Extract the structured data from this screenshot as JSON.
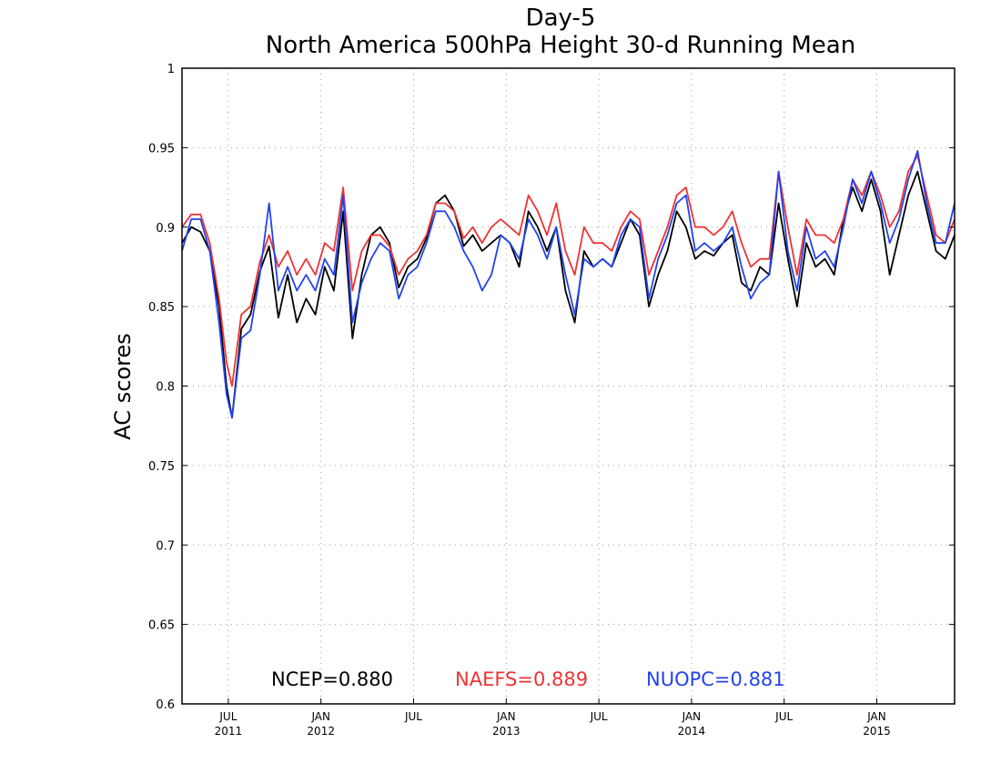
{
  "chart_data": {
    "type": "line",
    "title": "Day-5",
    "subtitle": "North America 500hPa Height 30-d Running Mean",
    "ylabel": "AC scores",
    "xlabel": "",
    "ylim": [
      0.6,
      1.0
    ],
    "xlim": [
      2011.28,
      2015.45
    ],
    "yticks": [
      0.6,
      0.65,
      0.7,
      0.75,
      0.8,
      0.85,
      0.9,
      0.95,
      1
    ],
    "ytick_labels": [
      "0.6",
      "0.65",
      "0.7",
      "0.75",
      "0.8",
      "0.85",
      "0.9",
      "0.95",
      "1"
    ],
    "xticks": [
      {
        "x": 2011.53,
        "month": "JUL",
        "year": "2011"
      },
      {
        "x": 2012.03,
        "month": "JAN",
        "year": "2012"
      },
      {
        "x": 2012.53,
        "month": "JUL",
        "year": ""
      },
      {
        "x": 2013.03,
        "month": "JAN",
        "year": "2013"
      },
      {
        "x": 2013.53,
        "month": "JUL",
        "year": ""
      },
      {
        "x": 2014.03,
        "month": "JAN",
        "year": "2014"
      },
      {
        "x": 2014.53,
        "month": "JUL",
        "year": ""
      },
      {
        "x": 2015.03,
        "month": "JAN",
        "year": "2015"
      }
    ],
    "grid": true,
    "legend_placement": "bottom-center",
    "series": [
      {
        "name": "NCEP",
        "legend_label": "NCEP=0.880",
        "color": "#000000",
        "x": [
          2011.28,
          2011.33,
          2011.38,
          2011.43,
          2011.48,
          2011.52,
          2011.55,
          2011.6,
          2011.65,
          2011.7,
          2011.75,
          2011.8,
          2011.85,
          2011.9,
          2011.95,
          2012.0,
          2012.05,
          2012.1,
          2012.15,
          2012.2,
          2012.25,
          2012.3,
          2012.35,
          2012.4,
          2012.45,
          2012.5,
          2012.55,
          2012.6,
          2012.65,
          2012.7,
          2012.75,
          2012.8,
          2012.85,
          2012.9,
          2012.95,
          2013.0,
          2013.05,
          2013.1,
          2013.15,
          2013.2,
          2013.25,
          2013.3,
          2013.35,
          2013.4,
          2013.45,
          2013.5,
          2013.55,
          2013.6,
          2013.65,
          2013.7,
          2013.75,
          2013.8,
          2013.85,
          2013.9,
          2013.95,
          2014.0,
          2014.05,
          2014.1,
          2014.15,
          2014.2,
          2014.25,
          2014.3,
          2014.35,
          2014.4,
          2014.45,
          2014.5,
          2014.55,
          2014.6,
          2014.65,
          2014.7,
          2014.75,
          2014.8,
          2014.85,
          2014.9,
          2014.95,
          2015.0,
          2015.05,
          2015.1,
          2015.15,
          2015.2,
          2015.25,
          2015.3,
          2015.35,
          2015.4,
          2015.45
        ],
        "y": [
          0.89,
          0.9,
          0.897,
          0.885,
          0.85,
          0.8,
          0.78,
          0.836,
          0.845,
          0.872,
          0.888,
          0.843,
          0.87,
          0.84,
          0.855,
          0.845,
          0.875,
          0.86,
          0.91,
          0.83,
          0.87,
          0.895,
          0.9,
          0.89,
          0.862,
          0.875,
          0.88,
          0.893,
          0.915,
          0.92,
          0.91,
          0.888,
          0.895,
          0.885,
          0.89,
          0.895,
          0.89,
          0.875,
          0.91,
          0.9,
          0.885,
          0.9,
          0.86,
          0.84,
          0.885,
          0.875,
          0.88,
          0.875,
          0.89,
          0.905,
          0.895,
          0.85,
          0.87,
          0.885,
          0.91,
          0.9,
          0.88,
          0.885,
          0.882,
          0.89,
          0.895,
          0.865,
          0.86,
          0.875,
          0.87,
          0.915,
          0.88,
          0.85,
          0.89,
          0.875,
          0.88,
          0.87,
          0.905,
          0.925,
          0.91,
          0.93,
          0.91,
          0.87,
          0.895,
          0.92,
          0.935,
          0.91,
          0.885,
          0.88,
          0.895
        ]
      },
      {
        "name": "NAEFS",
        "legend_label": "NAEFS=0.889",
        "color": "#ee3333",
        "x": [
          2011.28,
          2011.33,
          2011.38,
          2011.43,
          2011.48,
          2011.52,
          2011.55,
          2011.6,
          2011.65,
          2011.7,
          2011.75,
          2011.8,
          2011.85,
          2011.9,
          2011.95,
          2012.0,
          2012.05,
          2012.1,
          2012.15,
          2012.2,
          2012.25,
          2012.3,
          2012.35,
          2012.4,
          2012.45,
          2012.5,
          2012.55,
          2012.6,
          2012.65,
          2012.7,
          2012.75,
          2012.8,
          2012.85,
          2012.9,
          2012.95,
          2013.0,
          2013.05,
          2013.1,
          2013.15,
          2013.2,
          2013.25,
          2013.3,
          2013.35,
          2013.4,
          2013.45,
          2013.5,
          2013.55,
          2013.6,
          2013.65,
          2013.7,
          2013.75,
          2013.8,
          2013.85,
          2013.9,
          2013.95,
          2014.0,
          2014.05,
          2014.1,
          2014.15,
          2014.2,
          2014.25,
          2014.3,
          2014.35,
          2014.4,
          2014.45,
          2014.5,
          2014.55,
          2014.6,
          2014.65,
          2014.7,
          2014.75,
          2014.8,
          2014.85,
          2014.9,
          2014.95,
          2015.0,
          2015.05,
          2015.1,
          2015.15,
          2015.2,
          2015.25,
          2015.3,
          2015.35,
          2015.4,
          2015.45
        ],
        "y": [
          0.9,
          0.908,
          0.908,
          0.89,
          0.855,
          0.815,
          0.8,
          0.845,
          0.85,
          0.878,
          0.895,
          0.875,
          0.885,
          0.87,
          0.88,
          0.87,
          0.89,
          0.885,
          0.925,
          0.86,
          0.885,
          0.895,
          0.895,
          0.888,
          0.87,
          0.88,
          0.885,
          0.895,
          0.915,
          0.915,
          0.91,
          0.893,
          0.9,
          0.89,
          0.9,
          0.905,
          0.9,
          0.895,
          0.92,
          0.91,
          0.895,
          0.915,
          0.885,
          0.87,
          0.9,
          0.89,
          0.89,
          0.885,
          0.9,
          0.91,
          0.905,
          0.87,
          0.885,
          0.9,
          0.92,
          0.925,
          0.9,
          0.9,
          0.895,
          0.9,
          0.91,
          0.89,
          0.875,
          0.88,
          0.88,
          0.935,
          0.9,
          0.87,
          0.905,
          0.895,
          0.895,
          0.89,
          0.905,
          0.93,
          0.92,
          0.935,
          0.92,
          0.9,
          0.91,
          0.935,
          0.945,
          0.92,
          0.895,
          0.89,
          0.905
        ]
      },
      {
        "name": "NUOPC",
        "legend_label": "NUOPC=0.881",
        "color": "#2244ee",
        "x": [
          2011.28,
          2011.33,
          2011.38,
          2011.43,
          2011.48,
          2011.52,
          2011.55,
          2011.6,
          2011.65,
          2011.7,
          2011.75,
          2011.8,
          2011.85,
          2011.9,
          2011.95,
          2012.0,
          2012.05,
          2012.1,
          2012.15,
          2012.2,
          2012.25,
          2012.3,
          2012.35,
          2012.4,
          2012.45,
          2012.5,
          2012.55,
          2012.6,
          2012.65,
          2012.7,
          2012.75,
          2012.8,
          2012.85,
          2012.9,
          2012.95,
          2013.0,
          2013.05,
          2013.1,
          2013.15,
          2013.2,
          2013.25,
          2013.3,
          2013.35,
          2013.4,
          2013.45,
          2013.5,
          2013.55,
          2013.6,
          2013.65,
          2013.7,
          2013.75,
          2013.8,
          2013.85,
          2013.9,
          2013.95,
          2014.0,
          2014.05,
          2014.1,
          2014.15,
          2014.2,
          2014.25,
          2014.3,
          2014.35,
          2014.4,
          2014.45,
          2014.5,
          2014.55,
          2014.6,
          2014.65,
          2014.7,
          2014.75,
          2014.8,
          2014.85,
          2014.9,
          2014.95,
          2015.0,
          2015.05,
          2015.1,
          2015.15,
          2015.2,
          2015.25,
          2015.3,
          2015.35,
          2015.4,
          2015.45
        ],
        "y": [
          0.885,
          0.905,
          0.905,
          0.885,
          0.84,
          0.795,
          0.78,
          0.83,
          0.835,
          0.87,
          0.915,
          0.86,
          0.875,
          0.86,
          0.87,
          0.86,
          0.88,
          0.87,
          0.92,
          0.84,
          0.865,
          0.88,
          0.89,
          0.885,
          0.855,
          0.87,
          0.875,
          0.89,
          0.91,
          0.91,
          0.9,
          0.885,
          0.875,
          0.86,
          0.87,
          0.895,
          0.89,
          0.88,
          0.905,
          0.895,
          0.88,
          0.9,
          0.87,
          0.845,
          0.88,
          0.875,
          0.88,
          0.875,
          0.895,
          0.905,
          0.9,
          0.855,
          0.88,
          0.895,
          0.915,
          0.92,
          0.885,
          0.89,
          0.885,
          0.89,
          0.9,
          0.875,
          0.855,
          0.865,
          0.87,
          0.935,
          0.885,
          0.86,
          0.9,
          0.88,
          0.885,
          0.875,
          0.9,
          0.93,
          0.915,
          0.935,
          0.915,
          0.89,
          0.905,
          0.93,
          0.948,
          0.915,
          0.89,
          0.89,
          0.915
        ]
      }
    ]
  }
}
